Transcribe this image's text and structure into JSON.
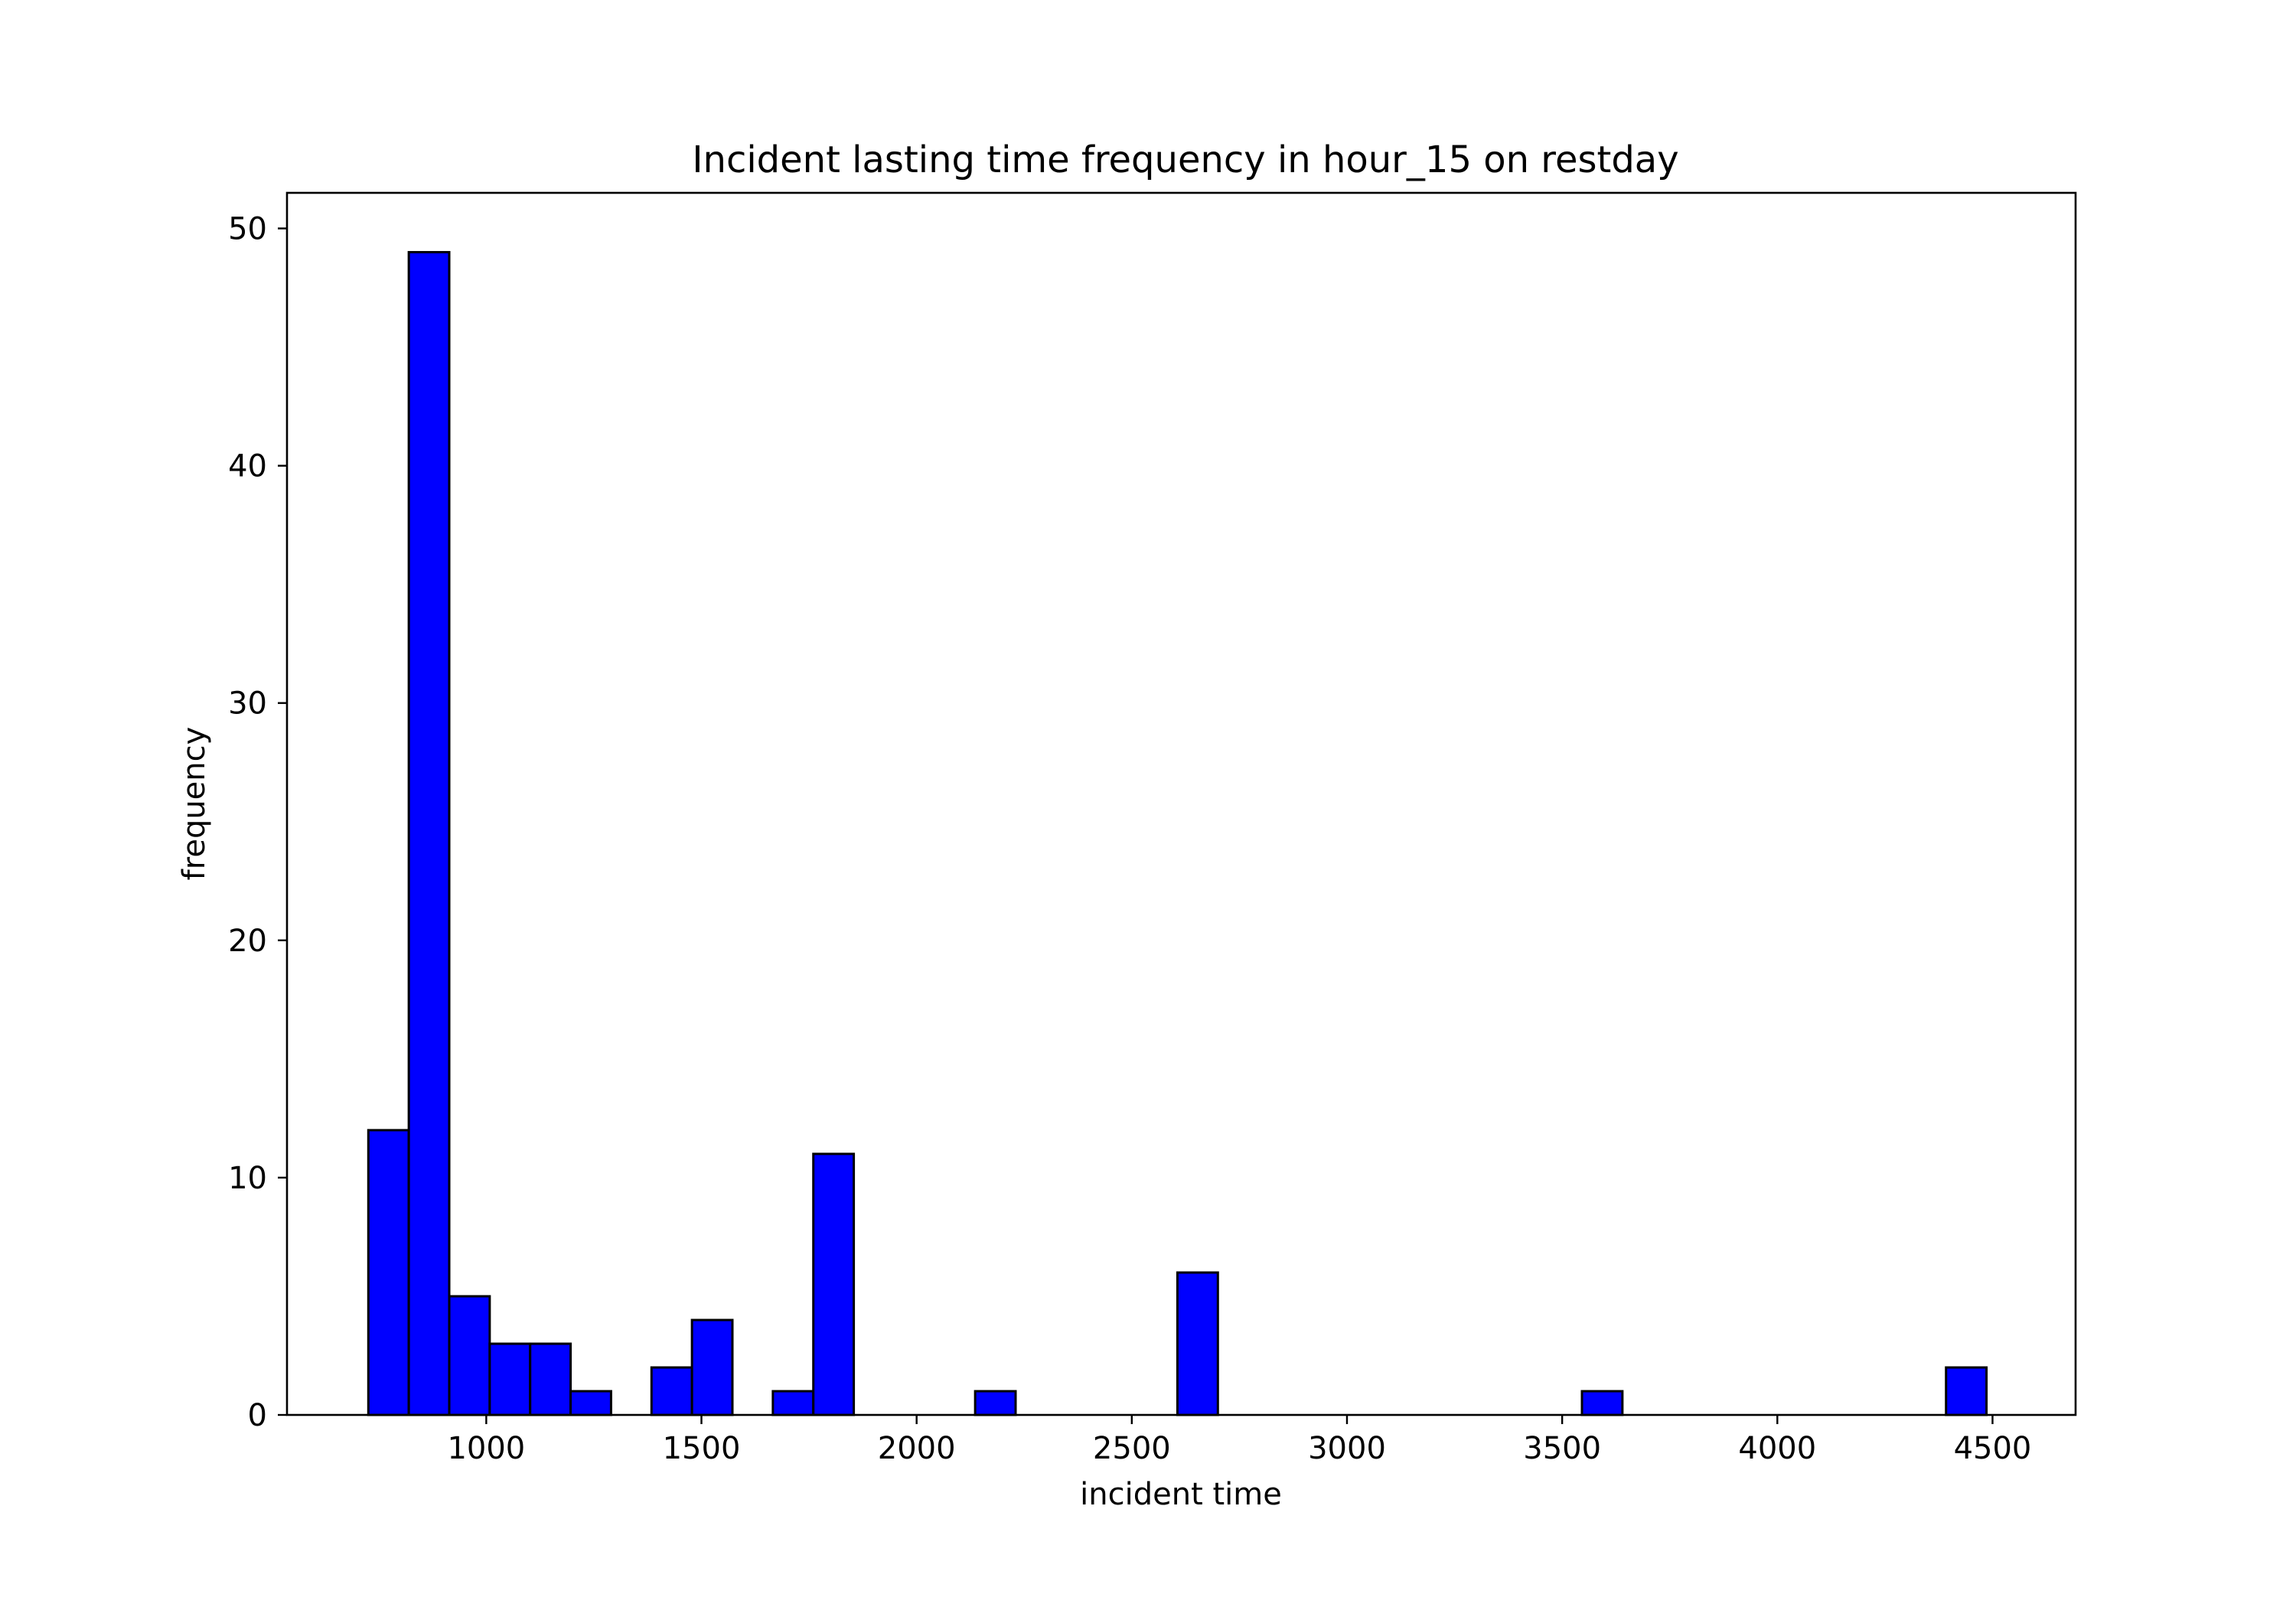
{
  "chart_data": {
    "type": "bar",
    "title": "Incident lasting time frequency in hour_15 on restday",
    "xlabel": "incident time",
    "ylabel": "frequency",
    "xlim": [
      537,
      4693
    ],
    "ylim": [
      0,
      51.5
    ],
    "x_ticks": [
      "1000",
      "1500",
      "2000",
      "2500",
      "3000",
      "3500",
      "4000",
      "4500"
    ],
    "y_ticks": [
      "0",
      "10",
      "20",
      "30",
      "40",
      "50"
    ],
    "bin_start": 726,
    "bin_width": 94,
    "bins": [
      {
        "x": 726,
        "value": 12
      },
      {
        "x": 820,
        "value": 49
      },
      {
        "x": 914,
        "value": 5
      },
      {
        "x": 1008,
        "value": 3
      },
      {
        "x": 1102,
        "value": 3
      },
      {
        "x": 1196,
        "value": 1
      },
      {
        "x": 1290,
        "value": 0
      },
      {
        "x": 1384,
        "value": 2
      },
      {
        "x": 1478,
        "value": 4
      },
      {
        "x": 1572,
        "value": 0
      },
      {
        "x": 1666,
        "value": 1
      },
      {
        "x": 1760,
        "value": 11
      },
      {
        "x": 1854,
        "value": 0
      },
      {
        "x": 1948,
        "value": 0
      },
      {
        "x": 2042,
        "value": 0
      },
      {
        "x": 2136,
        "value": 1
      },
      {
        "x": 2230,
        "value": 0
      },
      {
        "x": 2324,
        "value": 0
      },
      {
        "x": 2418,
        "value": 0
      },
      {
        "x": 2512,
        "value": 0
      },
      {
        "x": 2606,
        "value": 6
      },
      {
        "x": 2700,
        "value": 0
      },
      {
        "x": 2794,
        "value": 0
      },
      {
        "x": 2888,
        "value": 0
      },
      {
        "x": 2982,
        "value": 0
      },
      {
        "x": 3076,
        "value": 0
      },
      {
        "x": 3170,
        "value": 0
      },
      {
        "x": 3264,
        "value": 0
      },
      {
        "x": 3358,
        "value": 0
      },
      {
        "x": 3452,
        "value": 0
      },
      {
        "x": 3546,
        "value": 1
      },
      {
        "x": 3640,
        "value": 0
      },
      {
        "x": 3734,
        "value": 0
      },
      {
        "x": 3828,
        "value": 0
      },
      {
        "x": 3922,
        "value": 0
      },
      {
        "x": 4016,
        "value": 0
      },
      {
        "x": 4110,
        "value": 0
      },
      {
        "x": 4204,
        "value": 0
      },
      {
        "x": 4298,
        "value": 0
      },
      {
        "x": 4392,
        "value": 2
      }
    ],
    "bar_color": "#0000ff",
    "edge_color": "#000000",
    "grid": false,
    "legend": "none"
  }
}
